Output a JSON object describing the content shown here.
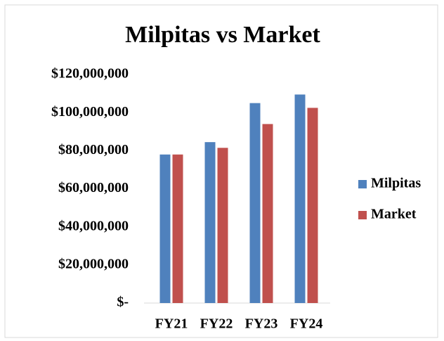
{
  "chart_data": {
    "type": "bar",
    "title": "Milpitas vs Market",
    "categories": [
      "FY21",
      "FY22",
      "FY23",
      "FY24"
    ],
    "series": [
      {
        "name": "Milpitas",
        "color": "#4f81bd",
        "values": [
          78000000,
          84500000,
          105000000,
          109500000
        ]
      },
      {
        "name": "Market",
        "color": "#c0504d",
        "values": [
          78000000,
          81500000,
          94000000,
          102500000
        ]
      }
    ],
    "ylim": [
      0,
      120000000
    ],
    "yticks": [
      {
        "value": 0,
        "label": "$-"
      },
      {
        "value": 20000000,
        "label": "$20,000,000"
      },
      {
        "value": 40000000,
        "label": "$40,000,000"
      },
      {
        "value": 60000000,
        "label": "$60,000,000"
      },
      {
        "value": 80000000,
        "label": "$80,000,000"
      },
      {
        "value": 100000000,
        "label": "$100,000,000"
      },
      {
        "value": 120000000,
        "label": "$120,000,000"
      }
    ],
    "legend": "right"
  }
}
